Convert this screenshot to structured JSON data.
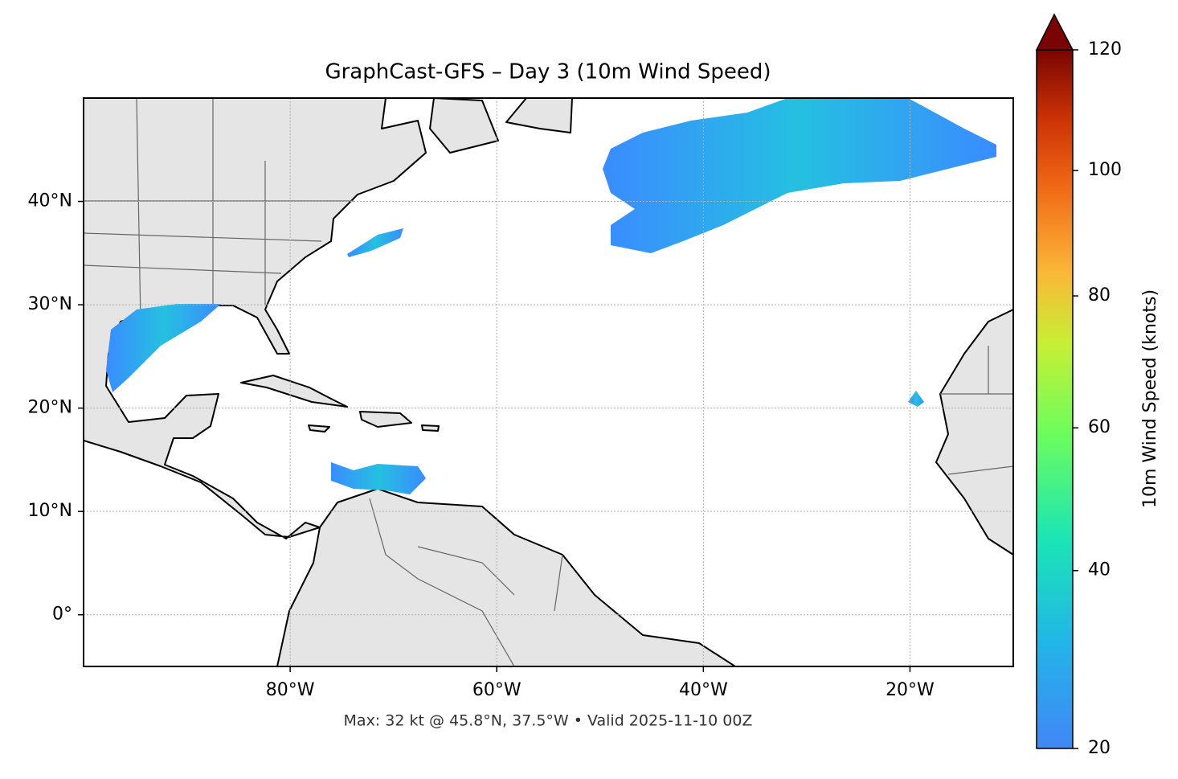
{
  "title": "GraphCast-GFS – Day 3 (10m Wind Speed)",
  "map": {
    "xlim": [
      -100,
      -10
    ],
    "ylim": [
      -5,
      50
    ],
    "lon_ticks": [
      {
        "value": -80,
        "label": "80°W"
      },
      {
        "value": -60,
        "label": "60°W"
      },
      {
        "value": -40,
        "label": "40°W"
      },
      {
        "value": -20,
        "label": "20°W"
      }
    ],
    "lat_ticks": [
      {
        "value": 40,
        "label": "40°N"
      },
      {
        "value": 30,
        "label": "30°N"
      },
      {
        "value": 20,
        "label": "20°N"
      },
      {
        "value": 10,
        "label": "10°N"
      },
      {
        "value": 0,
        "label": "0°"
      }
    ]
  },
  "colorbar": {
    "label": "10m Wind Speed (knots)",
    "lim": [
      20,
      120
    ],
    "ticks": [
      20,
      40,
      60,
      80,
      100,
      120
    ]
  },
  "footer": "Max: 32 kt @ 45.8°N, 37.5°W • Valid 2025-11-10 00Z"
}
